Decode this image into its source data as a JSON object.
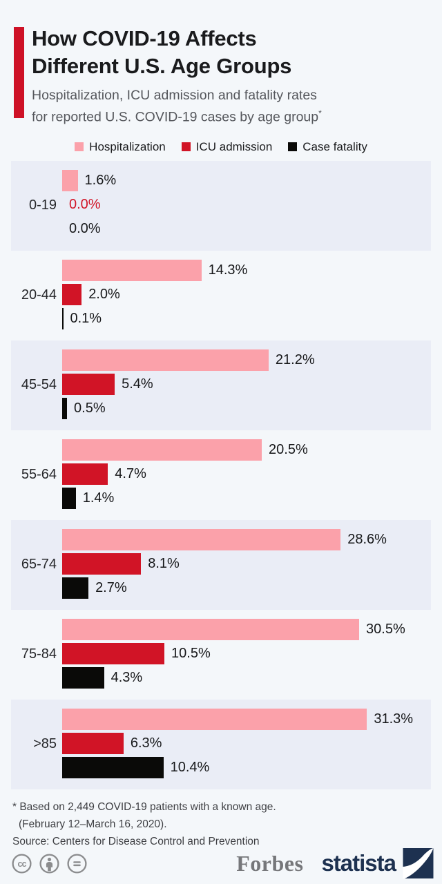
{
  "header": {
    "title_line1": "How COVID-19 Affects",
    "title_line2": "Different U.S. Age Groups",
    "subtitle_line1": "Hospitalization, ICU admission and fatality rates",
    "subtitle_line2": "for reported U.S. COVID-19 cases by age group",
    "subtitle_footnote_marker": "*",
    "accent_color": "#ce1126"
  },
  "legend": [
    {
      "label": "Hospitalization",
      "color": "#fba1aa"
    },
    {
      "label": "ICU admission",
      "color": "#d11426"
    },
    {
      "label": "Case fatality",
      "color": "#0a0a08"
    }
  ],
  "chart_data": {
    "type": "bar",
    "orientation": "horizontal",
    "unit": "%",
    "x_max": 31.3,
    "grid": false,
    "row_shaded_background": "#eaedf6",
    "categories": [
      "0-19",
      "20-44",
      "45-54",
      "55-64",
      "65-74",
      "75-84",
      ">85"
    ],
    "series": [
      {
        "key": "hospitalization",
        "name": "Hospitalization",
        "color": "#fba1aa",
        "values": [
          1.6,
          14.3,
          21.2,
          20.5,
          28.6,
          30.5,
          31.3
        ],
        "value_labels": [
          "1.6%",
          "14.3%",
          "21.2%",
          "20.5%",
          "28.6%",
          "30.5%",
          "31.3%"
        ]
      },
      {
        "key": "icu-admission",
        "name": "ICU admission",
        "color": "#d11426",
        "values": [
          0.0,
          2.0,
          5.4,
          4.7,
          8.1,
          10.5,
          6.3
        ],
        "value_labels": [
          "0.0%",
          "2.0%",
          "5.4%",
          "4.7%",
          "8.1%",
          "10.5%",
          "6.3%"
        ],
        "label_colors": [
          "#d11426",
          null,
          null,
          null,
          null,
          null,
          null
        ]
      },
      {
        "key": "case-fatality",
        "name": "Case fatality",
        "color": "#0a0a08",
        "values": [
          0.0,
          0.1,
          0.5,
          1.4,
          2.7,
          4.3,
          10.4
        ],
        "value_labels": [
          "0.0%",
          "0.1%",
          "0.5%",
          "1.4%",
          "2.7%",
          "4.3%",
          "10.4%"
        ]
      }
    ]
  },
  "footnote": {
    "line1": "* Based on 2,449 COVID-19 patients with a known age.",
    "line2": "(February 12–March 16, 2020).",
    "line3": "Source: Centers for Disease Control and Prevention"
  },
  "footer": {
    "license_icons": [
      "cc-icon",
      "attribution-icon",
      "equals-icon"
    ],
    "icon_color": "#8b8c8e",
    "forbes_label": "Forbes",
    "forbes_color": "#76777a",
    "statista_label": "statista",
    "statista_color": "#1d3150"
  }
}
